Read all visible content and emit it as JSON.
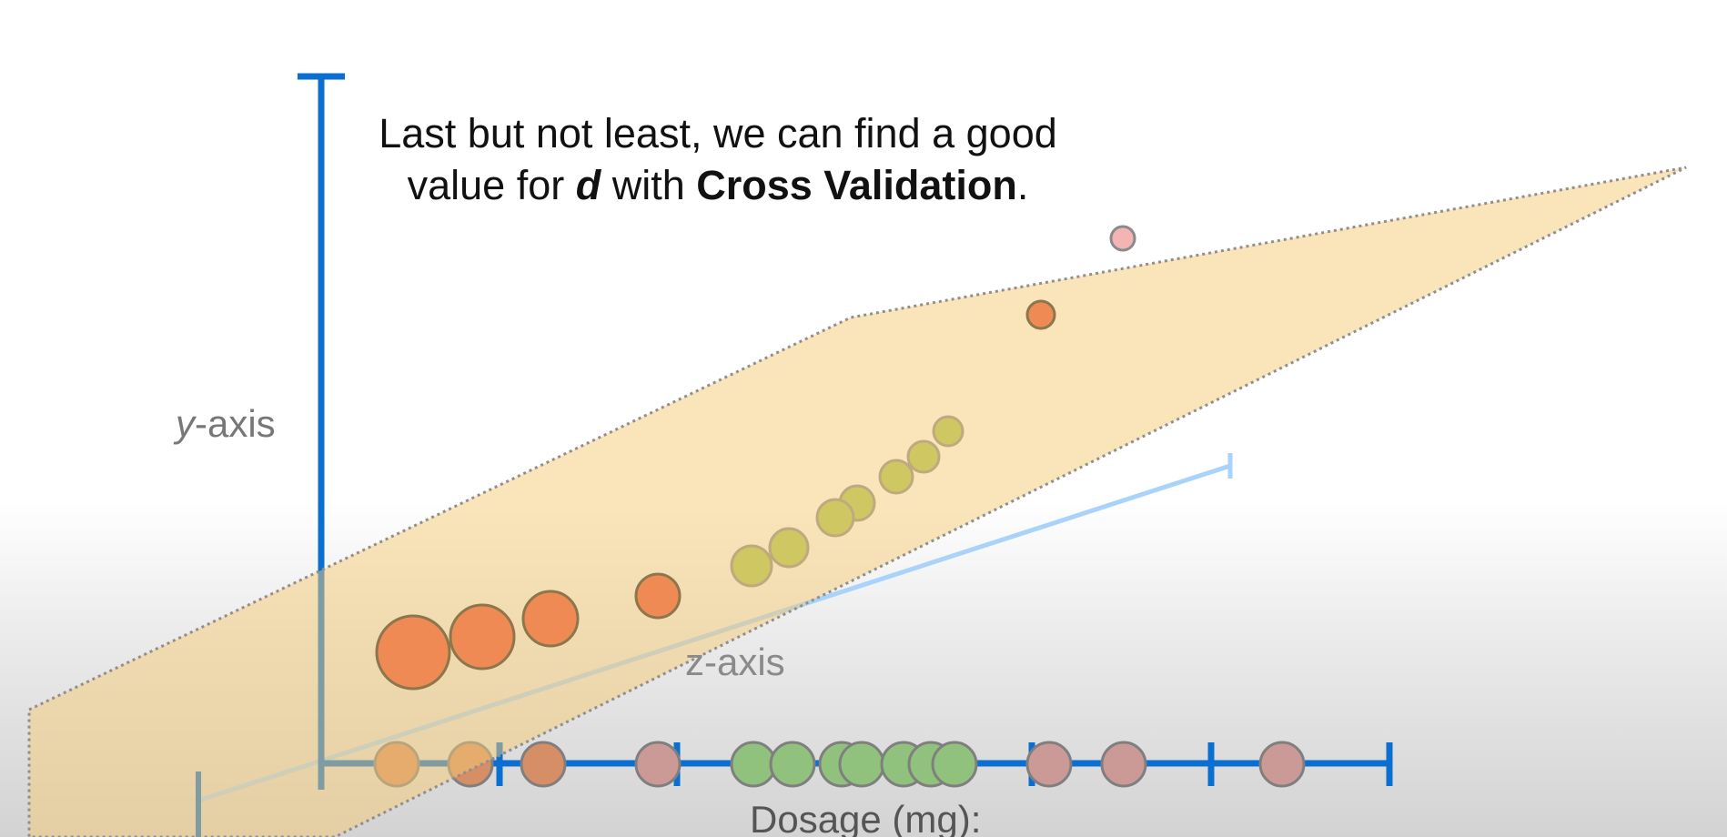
{
  "caption": {
    "part1": "Last but not least, we can find a good value for ",
    "variable": "d",
    "part2": " with ",
    "emphasis": "Cross Validation",
    "part3": "."
  },
  "axes": {
    "y_label_italic": "y",
    "y_label_rest": "-axis",
    "z_label": "z-axis",
    "x_label": "Dosage (mg):"
  },
  "colors": {
    "axis": "#0a6fd0",
    "axis_light": "#a9d3fb",
    "plane_fill": "#f6c976",
    "plane_edge": "#8f8f8f",
    "red_dot": "#e94a34",
    "green_dot": "#a8c44e",
    "pale_dot": "#f4b4b4",
    "axis_dot_orange": "#d58e66",
    "axis_dot_pink": "#cc9a96",
    "axis_dot_green": "#90c27e"
  }
}
